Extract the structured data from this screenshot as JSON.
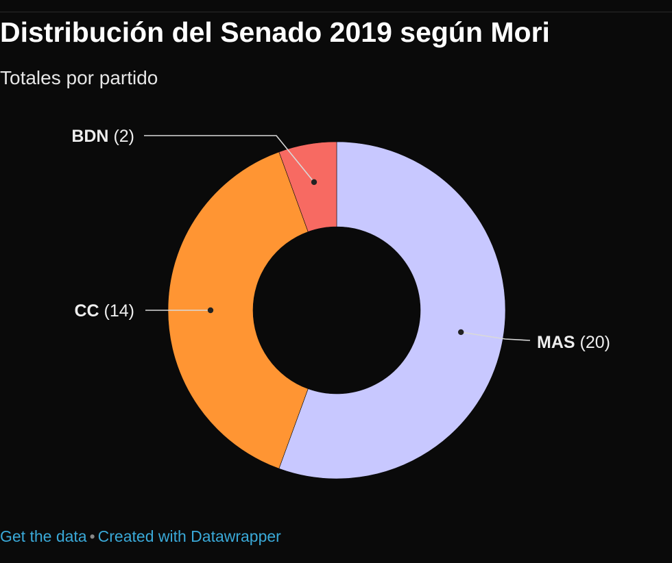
{
  "header": {
    "title": "Distribución del Senado 2019 según Mori",
    "subtitle": "Totales por partido"
  },
  "chart_data": {
    "type": "pie",
    "donut": true,
    "slices": [
      {
        "label": "MAS",
        "value": 20,
        "color": "#c8c8ff"
      },
      {
        "label": "CC",
        "value": 14,
        "color": "#ff9533"
      },
      {
        "label": "BDN",
        "value": 2,
        "color": "#f76a62"
      }
    ]
  },
  "footer": {
    "get_data": "Get the data",
    "separator": "•",
    "created_with": "Created with Datawrapper"
  }
}
